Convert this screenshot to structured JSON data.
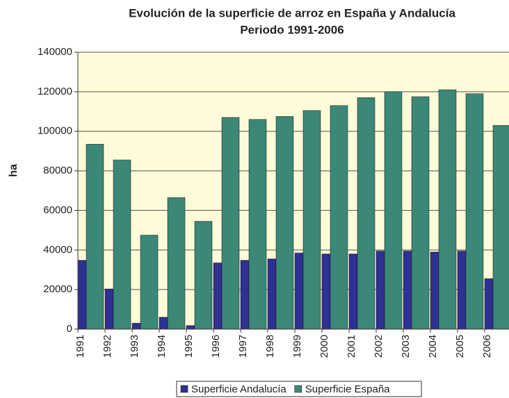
{
  "chart_data": {
    "type": "bar",
    "title": "Evolución de la superficie de arroz en España y Andalucía",
    "subtitle": "Periodo 1991-2006",
    "ylabel": "ha",
    "categories": [
      "1991",
      "1992",
      "1993",
      "1994",
      "1995",
      "1996",
      "1997",
      "1998",
      "1999",
      "2000",
      "2001",
      "2002",
      "2003",
      "2004",
      "2005",
      "2006"
    ],
    "series": [
      {
        "name": "Superficie Andalucía",
        "color": "#2e3192",
        "values": [
          34800,
          20300,
          3000,
          6000,
          1800,
          33500,
          34800,
          35500,
          38500,
          38000,
          38000,
          39500,
          39500,
          39000,
          39500,
          25500
        ]
      },
      {
        "name": "Superficie España",
        "color": "#3b8778",
        "values": [
          93500,
          85500,
          47500,
          66500,
          54500,
          107000,
          106000,
          107500,
          110500,
          113000,
          117000,
          120000,
          117500,
          121000,
          119000,
          103000
        ]
      }
    ],
    "ylim": [
      0,
      140000
    ],
    "yticks": [
      0,
      20000,
      40000,
      60000,
      80000,
      100000,
      120000,
      140000
    ],
    "grid": true,
    "legend": "bottom"
  }
}
